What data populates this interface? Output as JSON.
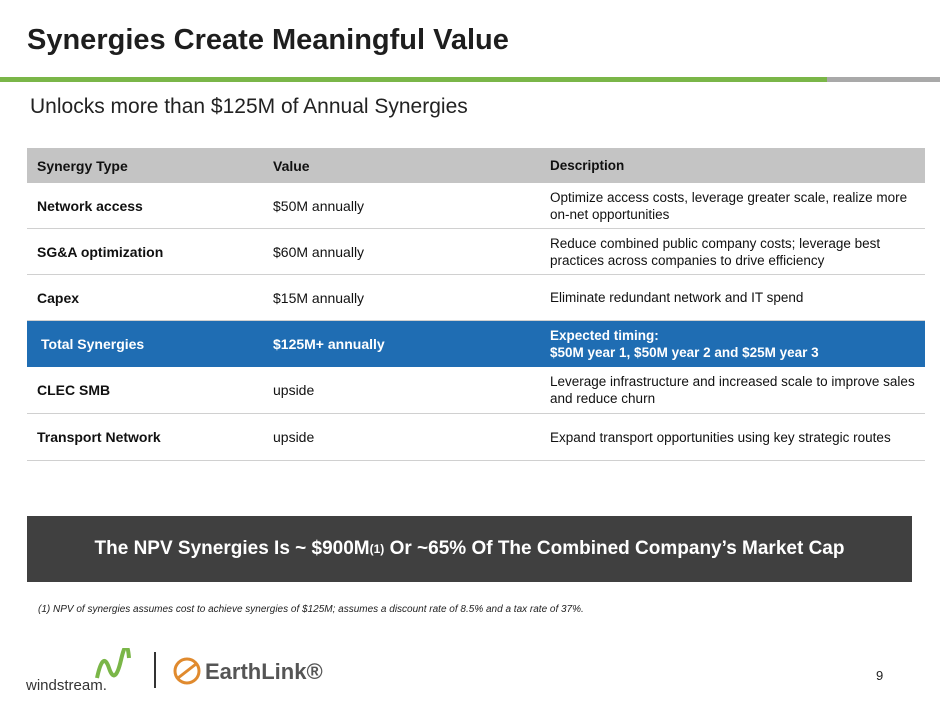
{
  "header": {
    "title": "Synergies Create Meaningful Value",
    "subtitle": "Unlocks more than $125M of Annual Synergies"
  },
  "table": {
    "columns": [
      "Synergy Type",
      "Value",
      "Description"
    ],
    "rows": [
      [
        "Network access",
        "$50M annually",
        "Optimize access costs, leverage greater scale, realize more on-net opportunities"
      ],
      [
        "SG&A optimization",
        "$60M annually",
        "Reduce combined public company costs; leverage best practices across companies to drive efficiency"
      ],
      [
        "Capex",
        "$15M annually",
        "Eliminate redundant network and IT spend"
      ],
      [
        "Total Synergies",
        "$125M+ annually",
        "Expected timing:\n$50M year 1, $50M year 2 and $25M year 3"
      ],
      [
        "CLEC SMB",
        "upside",
        "Leverage infrastructure and increased scale to improve sales and reduce churn"
      ],
      [
        "Transport Network",
        "upside",
        "Expand transport opportunities using key strategic routes"
      ]
    ]
  },
  "banner": {
    "text_before": "The NPV Synergies Is ~ $900M",
    "superscript": "(1)",
    "text_after": " Or ~65% Of The Combined Company’s Market Cap"
  },
  "footnote": "(1) NPV of synergies assumes cost to achieve synergies of $125M; assumes a discount rate of 8.5% and a tax rate of 37%.",
  "logos": {
    "windstream": "windstream.",
    "earthlink": "EarthLink®"
  },
  "page_number": "9"
}
